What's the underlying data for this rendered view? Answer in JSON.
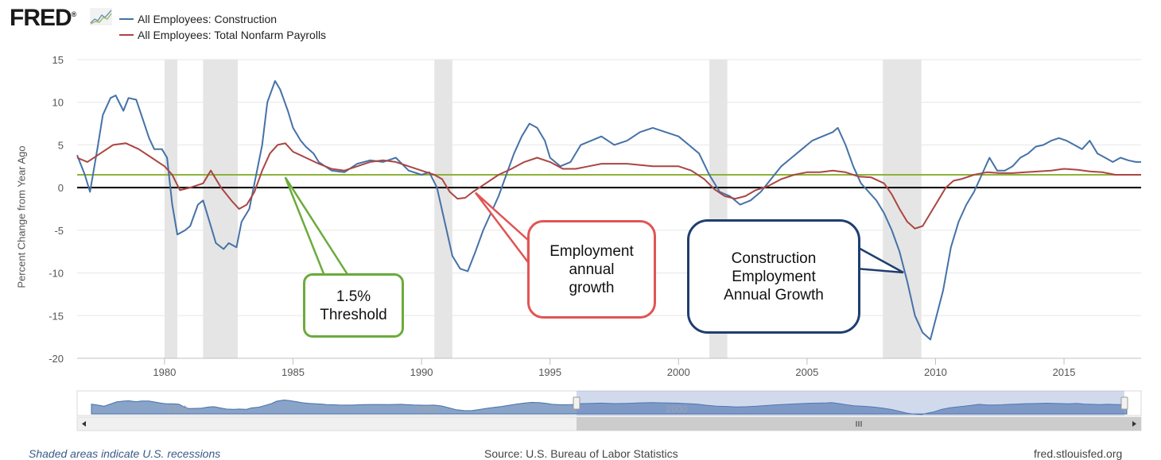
{
  "brand": {
    "logo_text": "FRED",
    "logo_mark": "®"
  },
  "legend": {
    "items": [
      {
        "label": "All Employees: Construction",
        "color": "#4572a7"
      },
      {
        "label": "All Employees: Total Nonfarm Payrolls",
        "color": "#aa4643"
      }
    ]
  },
  "chart_data": {
    "type": "line",
    "ylabel": "Percent Change from Year Ago",
    "ylim": [
      -20,
      15
    ],
    "yticks": [
      15,
      10,
      5,
      0,
      -5,
      -10,
      -15,
      -20
    ],
    "xlim": [
      1976.6,
      2018.0
    ],
    "xticks": [
      1980,
      1985,
      1990,
      1995,
      2000,
      2005,
      2010,
      2015
    ],
    "grid": "horizontal",
    "legend_position": "top-left",
    "recessions": [
      [
        1980.0,
        1980.5
      ],
      [
        1981.5,
        1982.85
      ],
      [
        1990.5,
        1991.2
      ],
      [
        2001.2,
        2001.9
      ],
      [
        2007.95,
        2009.45
      ]
    ],
    "reference_lines": [
      {
        "value": 0,
        "color": "#000000"
      },
      {
        "value": 1.5,
        "color": "#8db33a"
      }
    ],
    "series": [
      {
        "name": "All Employees: Construction",
        "color": "#4572a7",
        "x": [
          1976.6,
          1976.9,
          1977.1,
          1977.4,
          1977.6,
          1977.9,
          1978.1,
          1978.4,
          1978.6,
          1978.9,
          1979.1,
          1979.4,
          1979.6,
          1979.9,
          1980.1,
          1980.3,
          1980.5,
          1980.8,
          1981.0,
          1981.3,
          1981.5,
          1981.8,
          1982.0,
          1982.3,
          1982.5,
          1982.8,
          1983.0,
          1983.3,
          1983.5,
          1983.8,
          1984.0,
          1984.3,
          1984.5,
          1984.8,
          1985.0,
          1985.3,
          1985.5,
          1985.8,
          1986.0,
          1986.5,
          1987.0,
          1987.5,
          1988.0,
          1988.5,
          1989.0,
          1989.5,
          1990.0,
          1990.3,
          1990.6,
          1990.9,
          1991.2,
          1991.5,
          1991.8,
          1992.1,
          1992.4,
          1992.7,
          1993.0,
          1993.3,
          1993.6,
          1993.9,
          1994.2,
          1994.5,
          1994.8,
          1995.0,
          1995.4,
          1995.8,
          1996.2,
          1996.6,
          1997.0,
          1997.5,
          1998.0,
          1998.5,
          1999.0,
          1999.5,
          2000.0,
          2000.4,
          2000.8,
          2001.2,
          2001.6,
          2002.0,
          2002.4,
          2002.8,
          2003.2,
          2003.6,
          2004.0,
          2004.4,
          2004.8,
          2005.2,
          2005.6,
          2006.0,
          2006.2,
          2006.5,
          2006.8,
          2007.1,
          2007.4,
          2007.7,
          2008.0,
          2008.3,
          2008.6,
          2008.9,
          2009.2,
          2009.5,
          2009.8,
          2010.0,
          2010.3,
          2010.6,
          2010.9,
          2011.2,
          2011.5,
          2011.8,
          2012.1,
          2012.4,
          2012.7,
          2013.0,
          2013.3,
          2013.6,
          2013.9,
          2014.2,
          2014.5,
          2014.8,
          2015.1,
          2015.4,
          2015.7,
          2016.0,
          2016.3,
          2016.6,
          2016.9,
          2017.2,
          2017.5,
          2017.8,
          2018.0
        ],
        "values": [
          3.8,
          1.5,
          -0.5,
          4.8,
          8.5,
          10.5,
          10.8,
          9.0,
          10.5,
          10.3,
          8.5,
          5.8,
          4.5,
          4.5,
          3.5,
          -2.0,
          -5.5,
          -5.0,
          -4.5,
          -2.0,
          -1.5,
          -4.5,
          -6.5,
          -7.2,
          -6.5,
          -7.0,
          -4.0,
          -2.5,
          0.5,
          5.0,
          10.0,
          12.5,
          11.5,
          9.0,
          7.0,
          5.5,
          4.8,
          4.0,
          3.0,
          2.0,
          1.8,
          2.8,
          3.2,
          3.0,
          3.5,
          2.0,
          1.5,
          1.8,
          0.0,
          -4.0,
          -8.0,
          -9.5,
          -9.8,
          -7.5,
          -5.0,
          -3.0,
          -1.0,
          1.5,
          4.0,
          6.0,
          7.5,
          7.0,
          5.5,
          3.5,
          2.5,
          3.0,
          5.0,
          5.5,
          6.0,
          5.0,
          5.5,
          6.5,
          7.0,
          6.5,
          6.0,
          5.0,
          4.0,
          1.5,
          -0.5,
          -1.0,
          -2.0,
          -1.5,
          -0.5,
          1.0,
          2.5,
          3.5,
          4.5,
          5.5,
          6.0,
          6.5,
          7.0,
          5.0,
          2.5,
          0.5,
          -0.5,
          -1.5,
          -3.0,
          -5.0,
          -7.5,
          -11.0,
          -15.0,
          -17.0,
          -17.8,
          -15.5,
          -12.0,
          -7.0,
          -4.0,
          -2.0,
          -0.5,
          1.5,
          3.5,
          2.0,
          2.0,
          2.5,
          3.5,
          4.0,
          4.8,
          5.0,
          5.5,
          5.8,
          5.5,
          5.0,
          4.5,
          5.5,
          4.0,
          3.5,
          3.0,
          3.5,
          3.2,
          3.0,
          3.0
        ],
        "end_value": 3.0
      },
      {
        "name": "All Employees: Total Nonfarm Payrolls",
        "color": "#aa4643",
        "x": [
          1976.6,
          1977.0,
          1977.5,
          1978.0,
          1978.5,
          1979.0,
          1979.5,
          1980.0,
          1980.3,
          1980.6,
          1981.0,
          1981.5,
          1981.8,
          1982.2,
          1982.6,
          1982.9,
          1983.2,
          1983.5,
          1983.8,
          1984.1,
          1984.4,
          1984.7,
          1985.0,
          1985.5,
          1986.0,
          1986.5,
          1987.0,
          1987.5,
          1988.0,
          1988.5,
          1989.0,
          1989.5,
          1990.0,
          1990.5,
          1990.8,
          1991.1,
          1991.4,
          1991.7,
          1992.0,
          1992.5,
          1993.0,
          1993.5,
          1994.0,
          1994.5,
          1995.0,
          1995.5,
          1996.0,
          1996.5,
          1997.0,
          1998.0,
          1999.0,
          2000.0,
          2000.5,
          2001.0,
          2001.4,
          2001.8,
          2002.2,
          2002.6,
          2003.0,
          2003.5,
          2004.0,
          2004.5,
          2005.0,
          2005.5,
          2006.0,
          2006.5,
          2007.0,
          2007.5,
          2008.0,
          2008.3,
          2008.6,
          2008.9,
          2009.2,
          2009.5,
          2009.8,
          2010.1,
          2010.4,
          2010.7,
          2011.0,
          2011.5,
          2012.0,
          2012.5,
          2013.0,
          2013.5,
          2014.0,
          2014.5,
          2015.0,
          2015.5,
          2016.0,
          2016.5,
          2017.0,
          2017.5,
          2018.0
        ],
        "values": [
          3.5,
          3.0,
          4.0,
          5.0,
          5.2,
          4.5,
          3.5,
          2.5,
          1.5,
          -0.3,
          0.0,
          0.5,
          2.0,
          0.0,
          -1.5,
          -2.5,
          -2.0,
          -0.5,
          2.0,
          4.0,
          5.0,
          5.2,
          4.2,
          3.5,
          2.8,
          2.2,
          2.0,
          2.5,
          3.0,
          3.2,
          3.0,
          2.5,
          2.0,
          1.5,
          1.0,
          -0.5,
          -1.3,
          -1.2,
          -0.5,
          0.5,
          1.5,
          2.2,
          3.0,
          3.5,
          3.0,
          2.2,
          2.2,
          2.5,
          2.8,
          2.8,
          2.5,
          2.5,
          2.0,
          1.0,
          -0.2,
          -1.0,
          -1.3,
          -1.0,
          -0.3,
          0.2,
          1.0,
          1.5,
          1.8,
          1.8,
          2.0,
          1.8,
          1.3,
          1.2,
          0.5,
          -0.8,
          -2.5,
          -4.0,
          -4.8,
          -4.5,
          -3.0,
          -1.5,
          0.0,
          0.8,
          1.0,
          1.5,
          1.8,
          1.7,
          1.7,
          1.8,
          1.9,
          2.0,
          2.2,
          2.1,
          1.9,
          1.8,
          1.5,
          1.5,
          1.5
        ],
        "end_value": 1.5
      }
    ],
    "navigator_ticks": [
      1980,
      1990,
      2000
    ]
  },
  "callouts": {
    "threshold": "1.5%\nThreshold",
    "employment": "Employment\nannual\ngrowth",
    "construction": "Construction\nEmployment\nAnnual Growth"
  },
  "footer": {
    "recession_note": "Shaded areas indicate U.S. recessions",
    "source": "Source: U.S. Bureau of Labor Statistics",
    "site": "fred.stlouisfed.org"
  }
}
